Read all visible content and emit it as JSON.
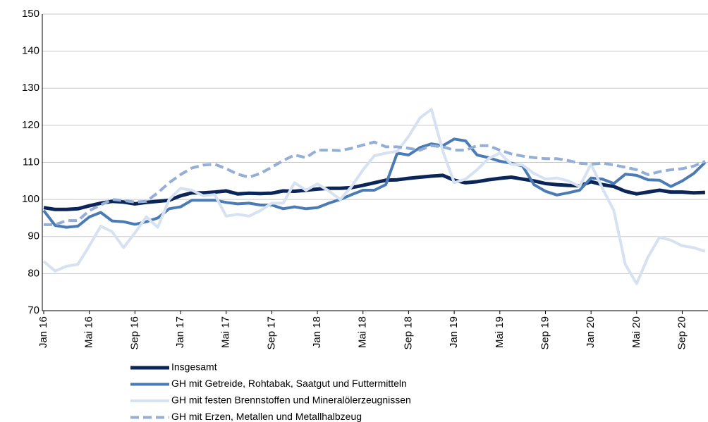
{
  "chart_data": {
    "type": "line",
    "categories": [
      "Jan 16",
      null,
      null,
      null,
      "Mai 16",
      null,
      null,
      null,
      "Sep 16",
      null,
      null,
      null,
      "Jan 17",
      null,
      null,
      null,
      "Mai 17",
      null,
      null,
      null,
      "Sep 17",
      null,
      null,
      null,
      "Jan 18",
      null,
      null,
      null,
      "Mai 18",
      null,
      null,
      null,
      "Sep 18",
      null,
      null,
      null,
      "Jan 19",
      null,
      null,
      null,
      "Mai 19",
      null,
      null,
      null,
      "Sep 19",
      null,
      null,
      null,
      "Jan 20",
      null,
      null,
      null,
      "Mai 20",
      null,
      null,
      null,
      "Sep 20",
      null,
      null
    ],
    "series": [
      {
        "name": "Insgesamt",
        "color": "#0b2559",
        "dashed": false,
        "values": [
          97.8,
          97.3,
          97.3,
          97.5,
          98.3,
          99,
          99.5,
          99.3,
          98.8,
          99.2,
          99.5,
          99.8,
          101,
          101.8,
          101.8,
          102,
          102.3,
          101.5,
          101.7,
          101.6,
          101.7,
          102.3,
          102.2,
          102.5,
          102.8,
          103,
          103,
          103.2,
          103.8,
          104.5,
          105.2,
          105.3,
          105.7,
          106,
          106.3,
          106.5,
          105.2,
          104.5,
          104.8,
          105.3,
          105.7,
          106,
          105.5,
          105,
          104.3,
          104,
          103.8,
          103.7,
          104.8,
          104,
          103.5,
          102.2,
          101.5,
          102,
          102.5,
          102,
          102,
          101.8,
          101.9
        ]
      },
      {
        "name": "GH mit Getreide, Rohtabak, Saatgut und Futtermitteln",
        "color": "#4a7bb5",
        "dashed": false,
        "values": [
          97,
          93,
          92.5,
          92.8,
          95.3,
          96.5,
          94.2,
          94,
          93.3,
          94,
          95,
          97.5,
          98,
          99.8,
          99.8,
          99.8,
          99.2,
          98.8,
          99,
          98.5,
          98.5,
          97.5,
          98,
          97.5,
          97.8,
          99,
          100,
          101.3,
          102.5,
          102.5,
          104,
          112.5,
          112,
          114,
          115,
          114.5,
          116.3,
          115.8,
          112,
          111.3,
          110.3,
          109.8,
          109,
          104,
          102.2,
          101.2,
          101.8,
          102.5,
          105.8,
          105.5,
          104.3,
          106.8,
          106.5,
          105.3,
          105.2,
          103.5,
          105,
          107,
          110
        ]
      },
      {
        "name": "GH mit festen Brennstoffen und Mineralölerzeugnissen",
        "color": "#d6e2f2",
        "dashed": false,
        "values": [
          83.3,
          80.7,
          82,
          82.5,
          87.5,
          92.8,
          91.3,
          87,
          91,
          95.3,
          92.5,
          100,
          103,
          102.5,
          101,
          101.3,
          95.5,
          96,
          95.5,
          97,
          99,
          99,
          104.5,
          102.5,
          104.2,
          102.3,
          100,
          103.5,
          108,
          111.8,
          112.5,
          113,
          117,
          122,
          124.3,
          113,
          104.5,
          105.5,
          108,
          111,
          112.5,
          109.5,
          109.3,
          107,
          105.5,
          105.8,
          105,
          103.5,
          109.5,
          103,
          97,
          82.5,
          77.3,
          84.5,
          89.8,
          89,
          87.5,
          87,
          86
        ]
      },
      {
        "name": "GH mit Erzen, Metallen und Metallhalbzeug",
        "color": "#93afd7",
        "dashed": true,
        "values": [
          93.2,
          93.2,
          94.3,
          94.3,
          97,
          98.5,
          100,
          99.7,
          99.3,
          99.5,
          101.8,
          104.5,
          106.7,
          108.5,
          109.3,
          109.5,
          108.3,
          106.8,
          106,
          107,
          108.7,
          110.5,
          112,
          111.3,
          113.3,
          113.3,
          113.2,
          113.8,
          114.7,
          115.5,
          114.2,
          114.2,
          113.8,
          113.3,
          114.5,
          114.2,
          113.3,
          113.3,
          114.5,
          114.5,
          113.3,
          112.3,
          111.7,
          111.3,
          111,
          111,
          110.5,
          109.8,
          109.5,
          109.8,
          109.3,
          108.7,
          108,
          106.7,
          107.5,
          108,
          108.3,
          109,
          110.3
        ]
      }
    ],
    "ylim": [
      70,
      150
    ],
    "yticks": [
      70,
      80,
      90,
      100,
      110,
      120,
      130,
      140,
      150
    ],
    "grid": true
  }
}
